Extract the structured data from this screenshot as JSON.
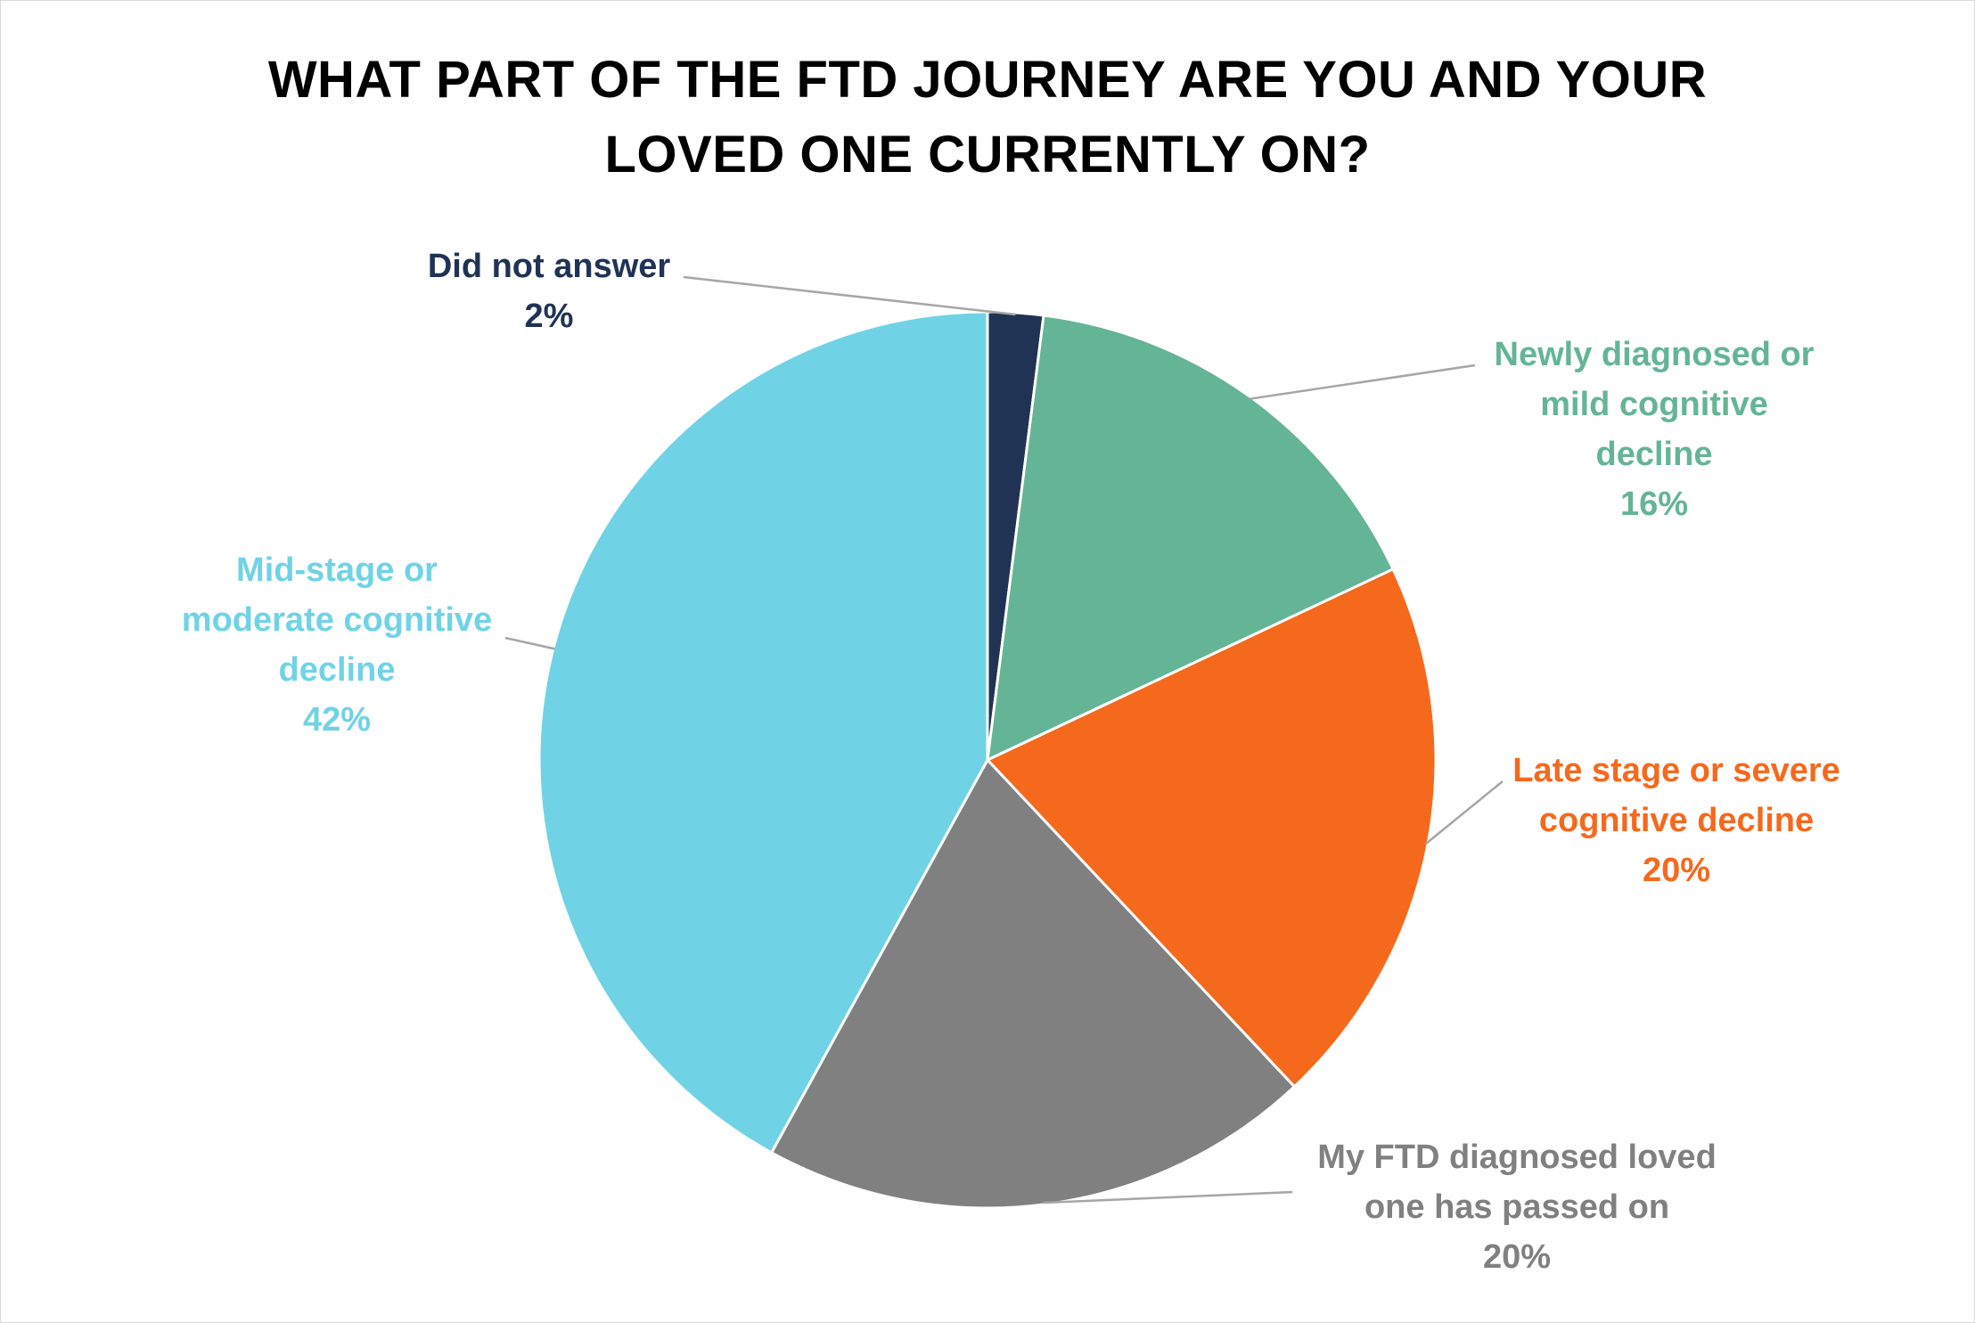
{
  "chart_data": {
    "type": "pie",
    "title_lines": [
      "WHAT PART OF THE FTD JOURNEY ARE YOU AND YOUR",
      "LOVED ONE CURRENTLY ON?"
    ],
    "slices": [
      {
        "name": "Did not answer",
        "label_lines": [
          "Did not answer"
        ],
        "value": 2,
        "value_label": "2%",
        "color": "#203354"
      },
      {
        "name": "Newly diagnosed or mild cognitive decline",
        "label_lines": [
          "Newly diagnosed or",
          "mild cognitive",
          "decline"
        ],
        "value": 16,
        "value_label": "16%",
        "color": "#64b595"
      },
      {
        "name": "Late stage or severe cognitive decline",
        "label_lines": [
          "Late stage or severe",
          "cognitive decline"
        ],
        "value": 20,
        "value_label": "20%",
        "color": "#f5691d"
      },
      {
        "name": "My FTD diagnosed loved one has passed on",
        "label_lines": [
          "My FTD diagnosed loved",
          "one has passed on"
        ],
        "value": 20,
        "value_label": "20%",
        "color": "#808080"
      },
      {
        "name": "Mid-stage or moderate cognitive decline",
        "label_lines": [
          "Mid-stage or",
          "moderate cognitive",
          "decline"
        ],
        "value": 42,
        "value_label": "42%",
        "color": "#70d3e5"
      }
    ],
    "start_angle": "12 o'clock",
    "direction": "clockwise",
    "legend": "none"
  }
}
